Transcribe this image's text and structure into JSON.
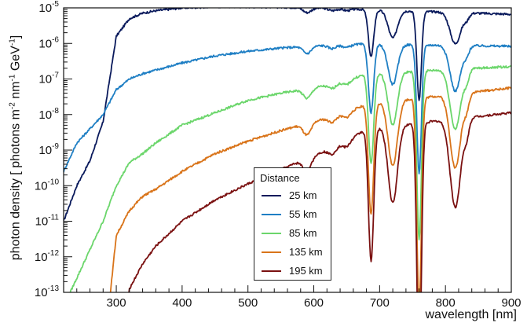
{
  "chart_data": {
    "type": "line",
    "title": "",
    "xlabel": "wavelength [nm]",
    "ylabel_parts": [
      "photon density [ photons m",
      "-2",
      " nm",
      "-1",
      " GeV",
      "-1",
      "]"
    ],
    "xlim": [
      220,
      900
    ],
    "ylim_exponents": [
      -13,
      -5
    ],
    "yscale": "log",
    "x_ticks": [
      300,
      400,
      500,
      600,
      700,
      800,
      900
    ],
    "y_tick_exponents": [
      -13,
      -12,
      -11,
      -10,
      -9,
      -8,
      -7,
      -6,
      -5
    ],
    "legend": {
      "title": "Distance",
      "placement": "center-right"
    },
    "base_x": [
      220,
      240,
      260,
      280,
      300,
      320,
      340,
      360,
      400,
      450,
      500,
      550,
      600,
      650,
      680,
      900
    ],
    "absorption_bands": [
      {
        "center": 590,
        "width": 6,
        "depth": 0.25
      },
      {
        "center": 628,
        "width": 6,
        "depth": 0.12
      },
      {
        "center": 650,
        "width": 6,
        "depth": 0.1
      },
      {
        "center": 687,
        "width": 4,
        "depth": 2.4
      },
      {
        "center": 720,
        "width": 7,
        "depth": 1.4
      },
      {
        "center": 760,
        "width": 3.5,
        "depth": 4.5
      },
      {
        "center": 815,
        "width": 8,
        "depth": 1.6
      },
      {
        "center": 832,
        "width": 4,
        "depth": 0.3
      }
    ],
    "series": [
      {
        "name": "25 km",
        "color": "#0a1a5c",
        "log_values": [
          -11.0,
          -10.0,
          -9.3,
          -8.2,
          -5.8,
          -5.3,
          -5.15,
          -5.08,
          -5.0,
          -4.97,
          -4.97,
          -4.98,
          -5.0,
          -5.02,
          -5.05,
          -5.18
        ]
      },
      {
        "name": "55 km",
        "color": "#1f7fc4",
        "log_values": [
          -9.6,
          -8.8,
          -8.4,
          -8.0,
          -7.3,
          -7.0,
          -6.85,
          -6.75,
          -6.55,
          -6.35,
          -6.22,
          -6.13,
          -6.07,
          -6.03,
          -6.02,
          -6.08
        ]
      },
      {
        "name": "85 km",
        "color": "#6bd66b",
        "log_values": [
          -13.4,
          -12.6,
          -11.8,
          -11.0,
          -10.0,
          -9.35,
          -9.1,
          -8.8,
          -8.3,
          -7.95,
          -7.6,
          -7.4,
          -7.25,
          -7.05,
          -6.85,
          -6.65
        ]
      },
      {
        "name": "135 km",
        "color": "#d9741a",
        "log_values": [
          -15.0,
          -15.0,
          -15.0,
          -15.0,
          -11.4,
          -10.7,
          -10.3,
          -10.1,
          -9.6,
          -9.1,
          -8.75,
          -8.45,
          -8.2,
          -7.95,
          -7.7,
          -7.25
        ]
      },
      {
        "name": "195 km",
        "color": "#7a1010",
        "log_values": [
          -15.0,
          -15.0,
          -15.0,
          -15.0,
          -15.0,
          -12.9,
          -12.2,
          -11.7,
          -11.0,
          -10.4,
          -9.95,
          -9.55,
          -9.15,
          -8.75,
          -8.4,
          -7.95
        ]
      }
    ]
  }
}
